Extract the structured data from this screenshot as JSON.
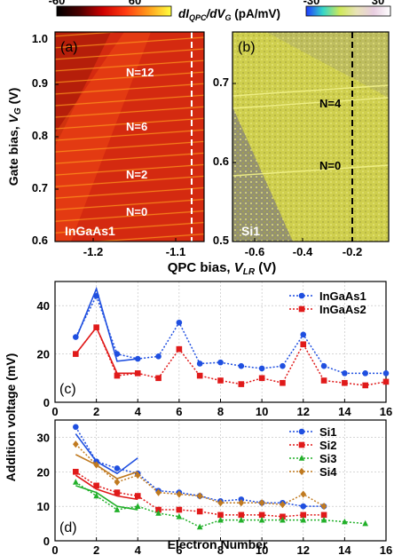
{
  "colorbars": {
    "left": {
      "min": "-60",
      "max": "60",
      "colors": [
        "#000000",
        "#4a0000",
        "#cc0000",
        "#ff3a10",
        "#ff9c1c",
        "#ffff40"
      ]
    },
    "right": {
      "min": "-30",
      "max": "30",
      "colors": [
        "#1f3cff",
        "#35d6c8",
        "#cfe85a",
        "#e9e3b9",
        "#e8cde0",
        "#ffffff"
      ]
    },
    "quantity_prefix": "dI",
    "quantity_sub1": "QPC",
    "quantity_mid": "/dV",
    "quantity_sub2": "G",
    "unit": " (pA/mV)"
  },
  "panel_a": {
    "label": "(a)",
    "sample": "InGaAs1",
    "annotations": [
      "N=12",
      "N=6",
      "N=2",
      "N=0"
    ],
    "x_ticks": [
      "-1.2",
      "-1.1"
    ],
    "y_ticks": [
      "0.6",
      "0.7",
      "0.8",
      "0.9",
      "1.0"
    ],
    "colors": {
      "base": "#d42a10",
      "dark": "#7a0a00",
      "bright": "#ffb020"
    }
  },
  "panel_b": {
    "label": "(b)",
    "sample": "Si1",
    "annotations": [
      "N=4",
      "N=0"
    ],
    "x_ticks": [
      "-0.6",
      "-0.4",
      "-0.2"
    ],
    "y_ticks": [
      "0.5",
      "0.6",
      "0.7"
    ],
    "colors": {
      "base": "#cfcf4e",
      "gray": "#8a8678",
      "bright": "#f2f28a"
    }
  },
  "axes_text": {
    "map_ylabel_main": "Gate bias, ",
    "map_ylabel_var": "V",
    "map_ylabel_sub": "G",
    "map_ylabel_unit": " (V)",
    "map_xlabel_main": "QPC bias, ",
    "map_xlabel_var": "V",
    "map_xlabel_sub": "LR",
    "map_xlabel_unit": " (V)",
    "addition_ylabel": "Addition voltage (mV)",
    "electron_xlabel": "Electron Number"
  },
  "chart_data": [
    {
      "type": "line",
      "panel": "(c)",
      "xlim": [
        0,
        16
      ],
      "ylim": [
        0,
        50
      ],
      "x_ticks": [
        "0",
        "2",
        "4",
        "6",
        "8",
        "10",
        "12",
        "14",
        "16"
      ],
      "y_ticks": [
        "0",
        "20",
        "40"
      ],
      "legend_position": "top-right",
      "series": [
        {
          "name": "InGaAs1",
          "color": "#1f4fe0",
          "marker": "circle",
          "x": [
            1,
            2,
            3,
            4,
            5,
            6,
            7,
            8,
            9,
            10,
            11,
            12,
            13,
            14,
            15,
            16
          ],
          "y": [
            27,
            44,
            20,
            18,
            19,
            33,
            16,
            16.5,
            15,
            14,
            15,
            28,
            15,
            12,
            12,
            12
          ],
          "fit_x": [
            1,
            2,
            3,
            4
          ],
          "fit_y": [
            26,
            47,
            17,
            18
          ]
        },
        {
          "name": "InGaAs2",
          "color": "#e01a1a",
          "marker": "square",
          "x": [
            1,
            2,
            3,
            4,
            5,
            6,
            7,
            8,
            9,
            10,
            11,
            12,
            13,
            14,
            15,
            16
          ],
          "y": [
            20,
            31,
            11,
            12,
            10,
            22,
            11,
            9,
            7.5,
            10,
            8,
            24,
            9,
            8,
            7,
            8.5
          ],
          "fit_x": [
            1,
            2,
            3,
            4
          ],
          "fit_y": [
            20,
            31,
            12,
            12
          ]
        }
      ]
    },
    {
      "type": "line",
      "panel": "(d)",
      "xlim": [
        0,
        16
      ],
      "ylim": [
        0,
        35
      ],
      "x_ticks": [
        "0",
        "2",
        "4",
        "6",
        "8",
        "10",
        "12",
        "14",
        "16"
      ],
      "y_ticks": [
        "0",
        "10",
        "20",
        "30"
      ],
      "legend_position": "top-right",
      "series": [
        {
          "name": "Si1",
          "color": "#1f4fe0",
          "marker": "circle",
          "x": [
            1,
            2,
            3,
            4,
            5,
            6,
            7,
            8,
            9,
            10,
            11,
            12,
            13
          ],
          "y": [
            33,
            23,
            21,
            19.5,
            14.5,
            14,
            13,
            11.5,
            12,
            11,
            11,
            10,
            10
          ],
          "fit_x": [
            1,
            2,
            3,
            4
          ],
          "fit_y": [
            31,
            23,
            19.5,
            24
          ]
        },
        {
          "name": "Si2",
          "color": "#e01a1a",
          "marker": "square",
          "x": [
            1,
            2,
            3,
            4,
            5,
            6,
            7,
            8,
            9,
            10,
            11,
            12,
            13
          ],
          "y": [
            20,
            16,
            14,
            13,
            9,
            9,
            8.5,
            7.5,
            7.5,
            7.5,
            7,
            7.5,
            7.5
          ],
          "fit_x": [
            1,
            2,
            3,
            4
          ],
          "fit_y": [
            19,
            15,
            13,
            12
          ]
        },
        {
          "name": "Si3",
          "color": "#22b02a",
          "marker": "triangle",
          "x": [
            1,
            2,
            3,
            4,
            5,
            6,
            7,
            8,
            9,
            10,
            11,
            12,
            13,
            14,
            15
          ],
          "y": [
            17,
            13,
            9,
            10,
            8,
            7,
            4,
            6,
            6,
            6,
            6,
            6,
            6,
            5.5,
            5
          ],
          "fit_x": [
            1,
            2,
            3,
            4
          ],
          "fit_y": [
            16,
            14,
            10,
            9
          ]
        },
        {
          "name": "Si4",
          "color": "#c07a20",
          "marker": "diamond",
          "x": [
            1,
            2,
            3,
            4,
            5,
            6,
            7,
            8,
            9,
            10,
            11,
            12,
            13
          ],
          "y": [
            28,
            22,
            17,
            19,
            14,
            13.5,
            13,
            11,
            11,
            11,
            10.5,
            13.5,
            10
          ],
          "fit_x": [
            1,
            2,
            3,
            4
          ],
          "fit_y": [
            25,
            22,
            18,
            20
          ]
        }
      ]
    }
  ]
}
